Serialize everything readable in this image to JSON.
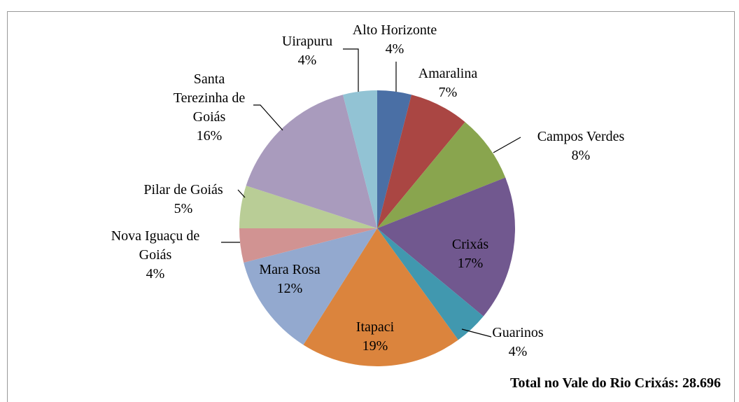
{
  "chart_data": {
    "type": "pie",
    "categories": [
      "Alto Horizonte",
      "Amaralina",
      "Campos Verdes",
      "Crixás",
      "Guarinos",
      "Itapaci",
      "Mara Rosa",
      "Nova Iguaçu de Goiás",
      "Pilar de Goiás",
      "Santa Terezinha de Goiás",
      "Uirapuru"
    ],
    "values": [
      4,
      7,
      8,
      17,
      4,
      19,
      12,
      4,
      5,
      16,
      4
    ],
    "value_labels": [
      "4%",
      "7%",
      "8%",
      "17%",
      "4%",
      "19%",
      "12%",
      "4%",
      "5%",
      "16%",
      "4%"
    ],
    "colors": [
      "#4a6fa5",
      "#aa4643",
      "#89a54e",
      "#71588f",
      "#4198af",
      "#db843d",
      "#93a9cf",
      "#d19392",
      "#b9cd96",
      "#a99bbd",
      "#92c3d4"
    ],
    "annotation": "Total no Vale do Rio Crixás: 28.696"
  }
}
